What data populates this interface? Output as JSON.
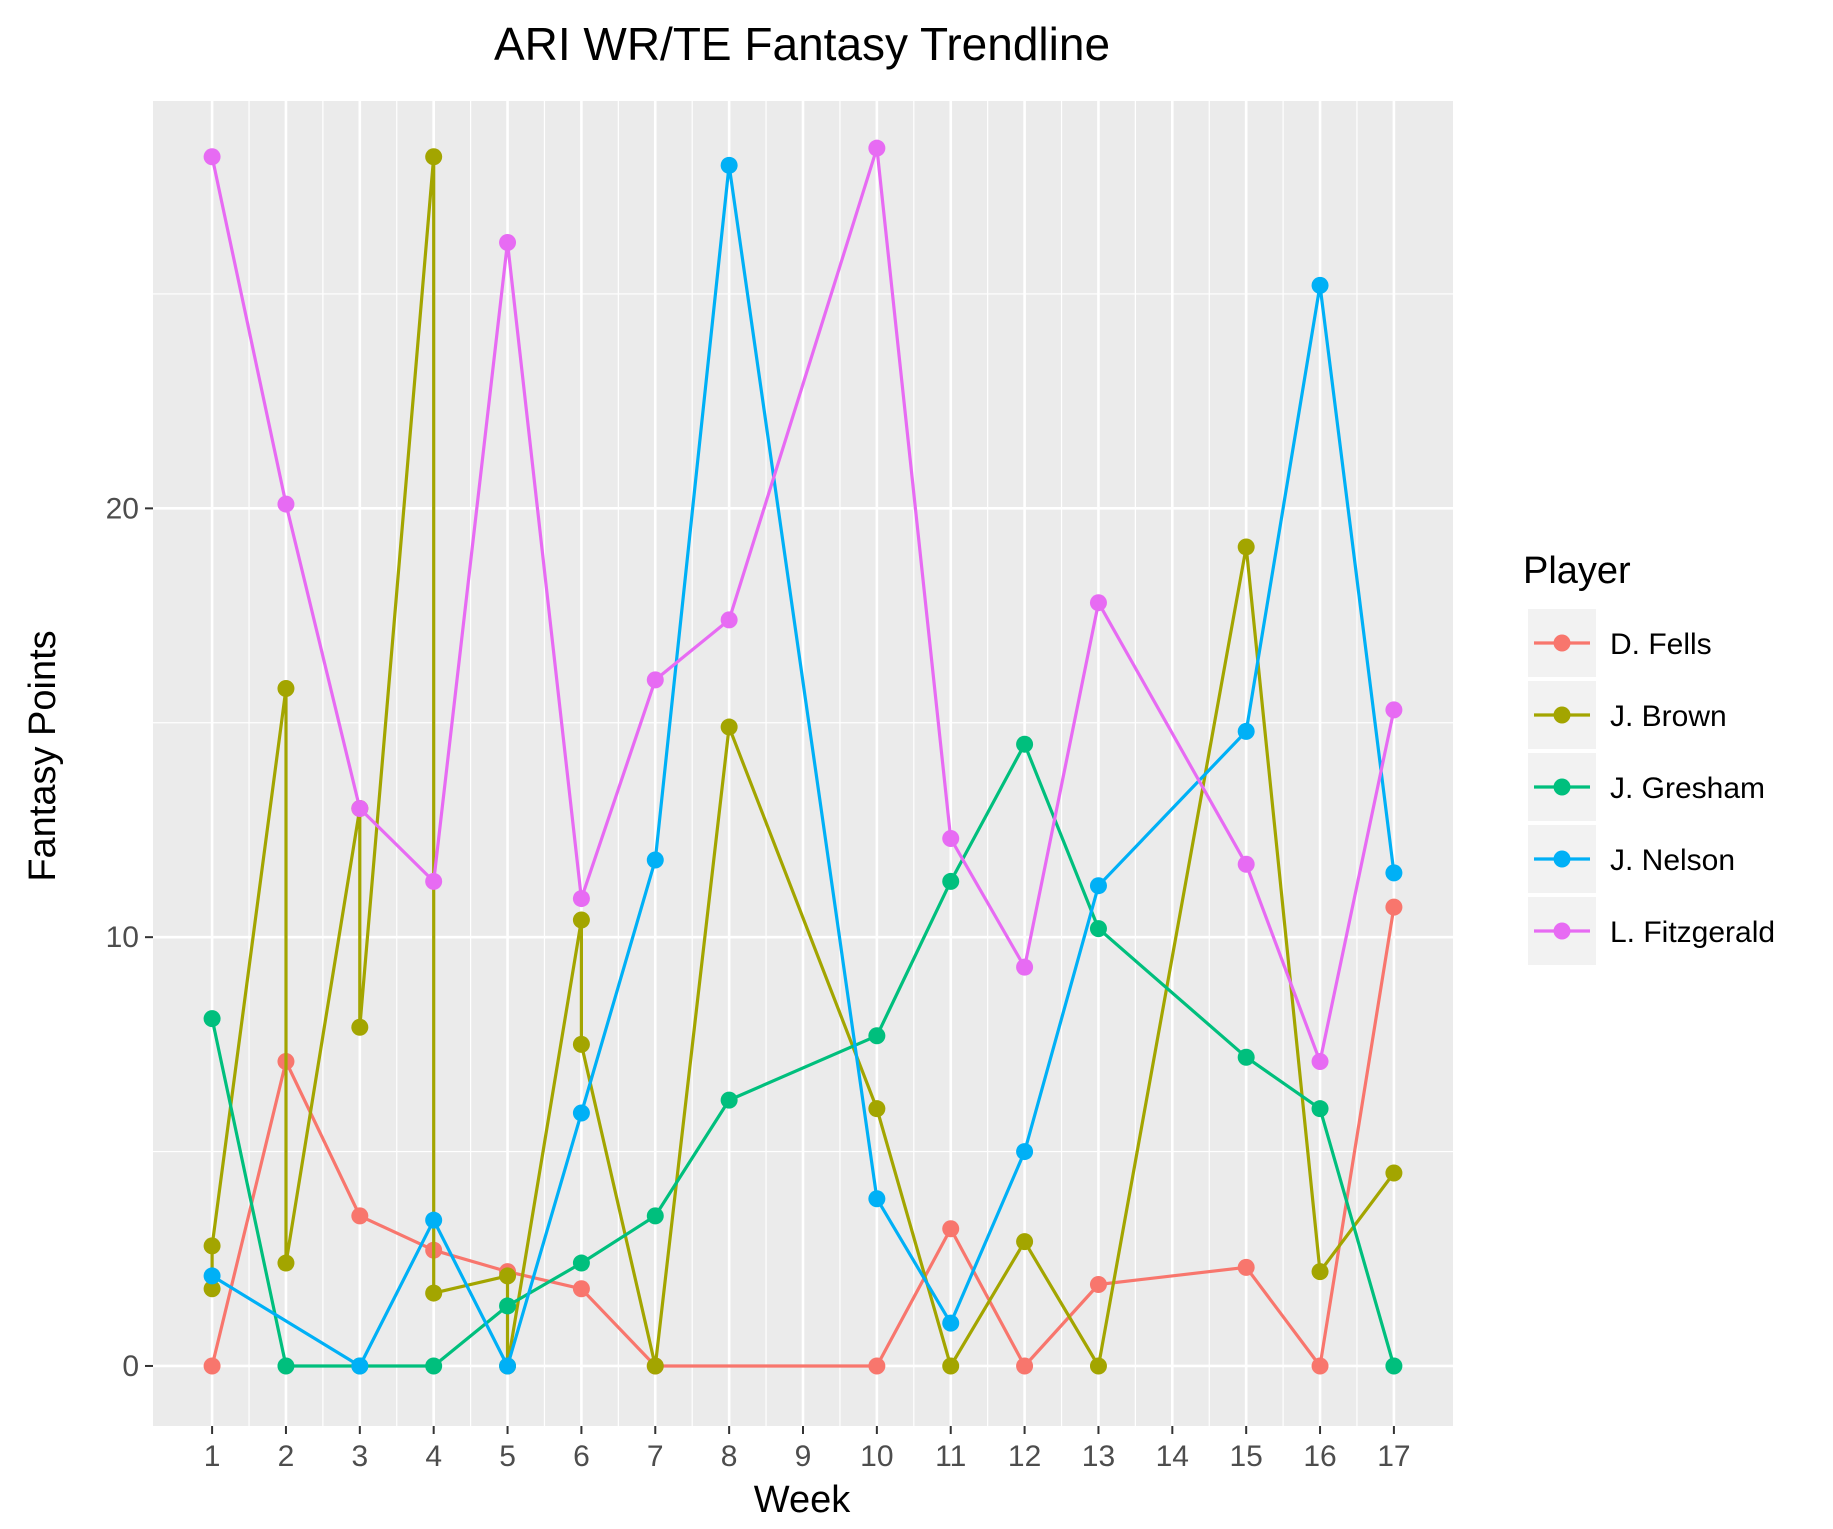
{
  "chart_data": {
    "type": "line",
    "title": "ARI WR/TE Fantasy Trendline",
    "xlabel": "Week",
    "ylabel": "Fantasy Points",
    "x_ticks": [
      1,
      2,
      3,
      4,
      5,
      6,
      7,
      8,
      9,
      10,
      11,
      12,
      13,
      14,
      15,
      16,
      17
    ],
    "y_ticks": [
      0,
      10,
      20
    ],
    "xlim": [
      0.2,
      17.8
    ],
    "ylim": [
      -1.4,
      29.5
    ],
    "grid": true,
    "legend": {
      "title": "Player",
      "position": "right"
    },
    "series": [
      {
        "name": "D. Fells",
        "color": "#F8766D",
        "points": [
          [
            1,
            0
          ],
          [
            2,
            7.1
          ],
          [
            3,
            3.5
          ],
          [
            4,
            2.7
          ],
          [
            5,
            2.2
          ],
          [
            6,
            1.8
          ],
          [
            7,
            0
          ],
          [
            10,
            0
          ],
          [
            11,
            3.2
          ],
          [
            12,
            0
          ],
          [
            13,
            1.9
          ],
          [
            15,
            2.3
          ],
          [
            16,
            0
          ],
          [
            17,
            10.7
          ]
        ]
      },
      {
        "name": "J. Brown",
        "color": "#A3A500",
        "points": [
          [
            1,
            1.8
          ],
          [
            1,
            2.8
          ],
          [
            2,
            15.8
          ],
          [
            2,
            2.4
          ],
          [
            3,
            13
          ],
          [
            3,
            7.9
          ],
          [
            4,
            28.2
          ],
          [
            4,
            1.7
          ],
          [
            5,
            2.1
          ],
          [
            5,
            0
          ],
          [
            6,
            10.4
          ],
          [
            6,
            7.5
          ],
          [
            7,
            0
          ],
          [
            8,
            14.9
          ],
          [
            10,
            6
          ],
          [
            11,
            0
          ],
          [
            12,
            2.9
          ],
          [
            13,
            0
          ],
          [
            15,
            19.1
          ],
          [
            16,
            2.2
          ],
          [
            17,
            4.5
          ]
        ]
      },
      {
        "name": "J. Gresham",
        "color": "#00BF7D",
        "points": [
          [
            1,
            8.1
          ],
          [
            2,
            0
          ],
          [
            3,
            0
          ],
          [
            4,
            0
          ],
          [
            5,
            1.4
          ],
          [
            6,
            2.4
          ],
          [
            7,
            3.5
          ],
          [
            8,
            6.2
          ],
          [
            10,
            7.7
          ],
          [
            11,
            11.3
          ],
          [
            12,
            14.5
          ],
          [
            13,
            10.2
          ],
          [
            15,
            7.2
          ],
          [
            16,
            6
          ],
          [
            17,
            0
          ]
        ]
      },
      {
        "name": "J. Nelson",
        "color": "#00B0F6",
        "points": [
          [
            1,
            2.1
          ],
          [
            3,
            0
          ],
          [
            4,
            3.4
          ],
          [
            5,
            0
          ],
          [
            6,
            5.9
          ],
          [
            7,
            11.8
          ],
          [
            8,
            28.0
          ],
          [
            10,
            3.9
          ],
          [
            11,
            1
          ],
          [
            12,
            5
          ],
          [
            13,
            11.2
          ],
          [
            15,
            14.8
          ],
          [
            16,
            25.2
          ],
          [
            17,
            11.5
          ]
        ]
      },
      {
        "name": "L. Fitzgerald",
        "color": "#E76BF3",
        "points": [
          [
            1,
            28.2
          ],
          [
            2,
            20.1
          ],
          [
            3,
            13
          ],
          [
            4,
            11.3
          ],
          [
            5,
            26.2
          ],
          [
            6,
            10.9
          ],
          [
            7,
            16
          ],
          [
            8,
            17.4
          ],
          [
            10,
            28.4
          ],
          [
            11,
            12.3
          ],
          [
            12,
            9.3
          ],
          [
            13,
            17.8
          ],
          [
            15,
            11.7
          ],
          [
            16,
            7.1
          ],
          [
            17,
            15.3
          ]
        ]
      }
    ]
  }
}
